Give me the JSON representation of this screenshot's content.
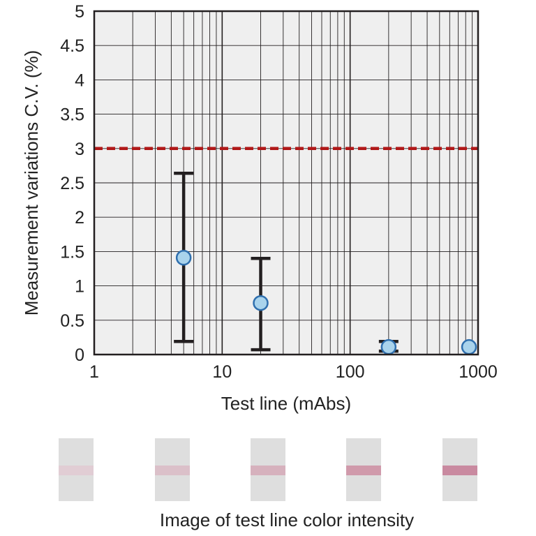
{
  "chart_data": {
    "type": "scatter",
    "xlabel": "Test line (mAbs)",
    "ylabel": "Measurement variations C.V. (%)",
    "xscale": "log",
    "xlim": [
      1,
      1000
    ],
    "ylim": [
      0,
      5
    ],
    "xticks": [
      "1",
      "10",
      "100",
      "1000"
    ],
    "yticks": [
      "0",
      "0.5",
      "1",
      "1.5",
      "2",
      "2.5",
      "3",
      "3.5",
      "4",
      "4.5",
      "5"
    ],
    "grid": true,
    "reference_line": {
      "y": 3,
      "color": "#b01818",
      "style": "dashed"
    },
    "points": [
      {
        "x": 5,
        "y": 1.41,
        "err_low": 0.19,
        "err_high": 2.64
      },
      {
        "x": 20,
        "y": 0.75,
        "err_low": 0.07,
        "err_high": 1.4
      },
      {
        "x": 200,
        "y": 0.11,
        "err_low": 0.05,
        "err_high": 0.19
      },
      {
        "x": 850,
        "y": 0.11
      }
    ],
    "marker_color": "#a9d3ec",
    "marker_edge_color": "#2f6fae",
    "errorbar_color": "#231f20"
  },
  "strips": [
    {
      "line_color": "#e1cdd4"
    },
    {
      "line_color": "#dbc0c9"
    },
    {
      "line_color": "#d6b1bd"
    },
    {
      "line_color": "#d09aab"
    },
    {
      "line_color": "#c98aa0"
    }
  ],
  "caption": "Image of test line color intensity"
}
